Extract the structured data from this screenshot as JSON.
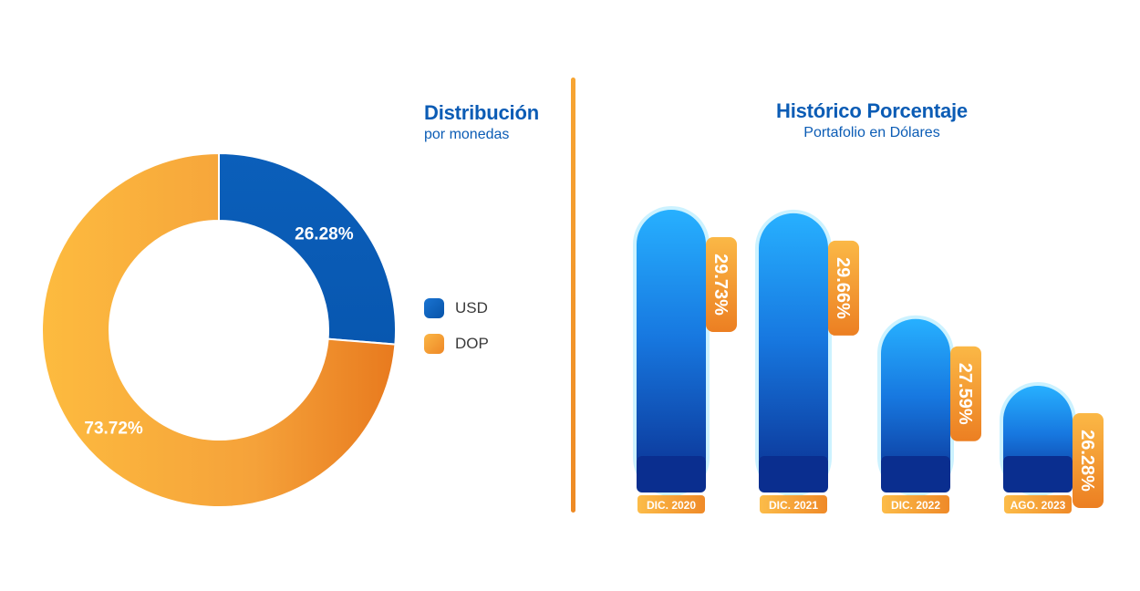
{
  "colors": {
    "usd": "#0a5bb5",
    "dop": "#f6a53a",
    "title": "#0b5cb5",
    "divider": "#f39a2c"
  },
  "distribution": {
    "title": "Distribución",
    "subtitle": "por monedas"
  },
  "historico": {
    "title": "Histórico Porcentaje",
    "subtitle": "Portafolio en Dólares"
  },
  "legend": [
    {
      "label": "USD"
    },
    {
      "label": "DOP"
    }
  ],
  "chart_data": [
    {
      "type": "pie",
      "title": "Distribución",
      "subtitle": "por monedas",
      "slices": [
        {
          "name": "USD",
          "value": 26.28,
          "label": "26.28%"
        },
        {
          "name": "DOP",
          "value": 73.72,
          "label": "73.72%"
        }
      ],
      "donut": true,
      "legend": "right"
    },
    {
      "type": "bar",
      "title": "Histórico Porcentaje",
      "subtitle": "Portafolio en Dólares",
      "categories": [
        "DIC. 2020",
        "DIC. 2021",
        "DIC. 2022",
        "AGO. 2023"
      ],
      "values": [
        29.73,
        29.66,
        27.59,
        26.28
      ],
      "value_labels": [
        "29.73%",
        "29.66%",
        "27.59%",
        "26.28%"
      ],
      "grid": false
    }
  ]
}
